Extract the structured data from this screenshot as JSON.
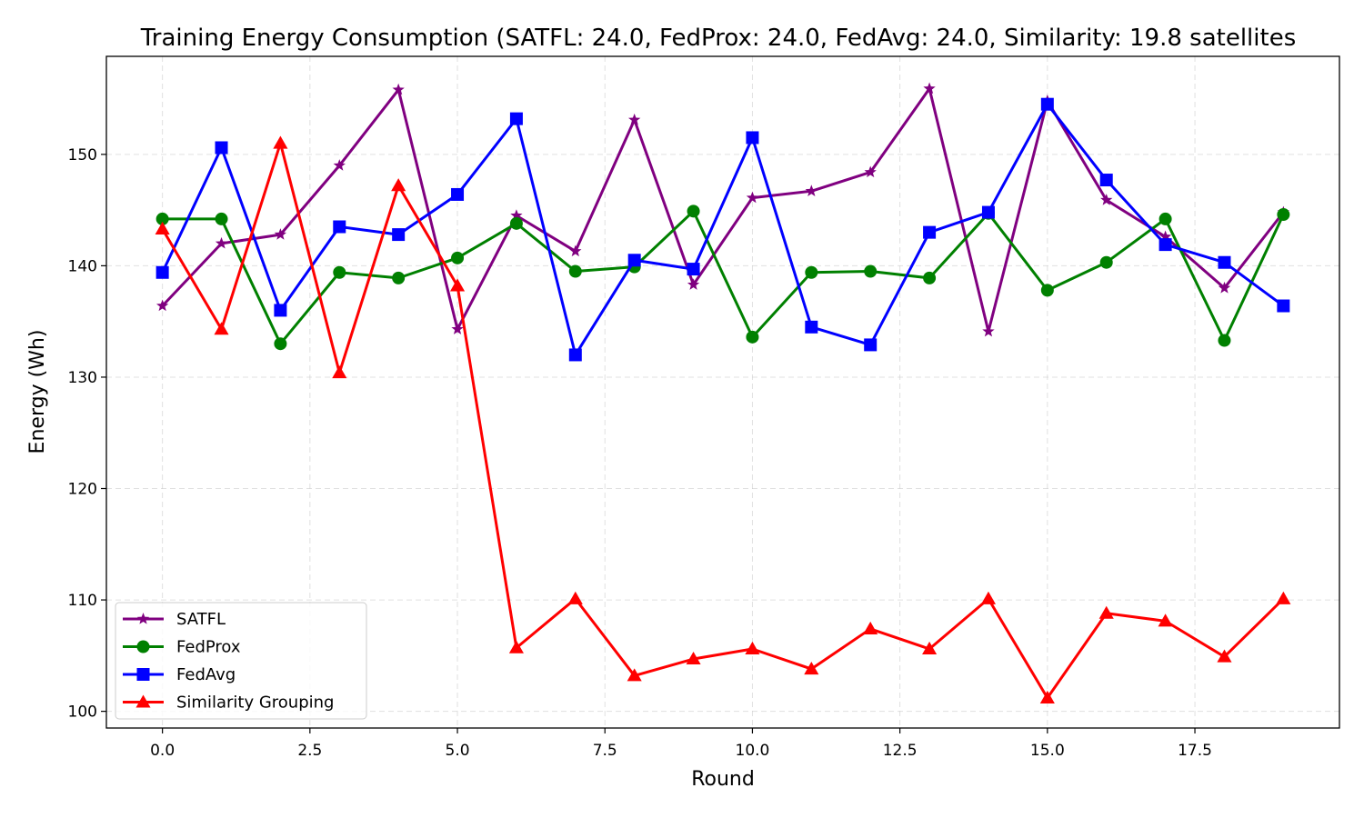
{
  "chart_data": {
    "type": "line",
    "title": "Training Energy Consumption (SATFL: 24.0, FedProx: 24.0, FedAvg: 24.0, Similarity: 19.8 satellites",
    "xlabel": "Round",
    "ylabel": "Energy (Wh)",
    "xlim": [
      -0.95,
      19.95
    ],
    "ylim": [
      98.5,
      158.8
    ],
    "xticks": [
      0.0,
      2.5,
      5.0,
      7.5,
      10.0,
      12.5,
      15.0,
      17.5
    ],
    "xtick_labels": [
      "0.0",
      "2.5",
      "5.0",
      "7.5",
      "10.0",
      "12.5",
      "15.0",
      "17.5"
    ],
    "yticks": [
      100,
      110,
      120,
      130,
      140,
      150
    ],
    "ytick_labels": [
      "100",
      "110",
      "120",
      "130",
      "140",
      "150"
    ],
    "grid": true,
    "legend_position": "lower-left",
    "x": [
      0,
      1,
      2,
      3,
      4,
      5,
      6,
      7,
      8,
      9,
      10,
      11,
      12,
      13,
      14,
      15,
      16,
      17,
      18,
      19
    ],
    "series": [
      {
        "name": "SATFL",
        "color": "#800080",
        "marker": "star",
        "values": [
          136.4,
          142.0,
          142.8,
          149.0,
          155.8,
          134.3,
          144.5,
          141.3,
          153.1,
          138.3,
          146.1,
          146.7,
          148.4,
          155.9,
          134.1,
          154.8,
          145.9,
          142.6,
          138.0,
          144.8
        ]
      },
      {
        "name": "FedProx",
        "color": "#008000",
        "marker": "circle",
        "values": [
          144.2,
          144.2,
          133.0,
          139.4,
          138.9,
          140.7,
          143.8,
          139.5,
          139.9,
          144.9,
          133.6,
          139.4,
          139.5,
          138.9,
          144.7,
          137.8,
          140.3,
          144.2,
          133.3,
          144.6
        ]
      },
      {
        "name": "FedAvg",
        "color": "#0000ff",
        "marker": "square",
        "values": [
          139.4,
          150.6,
          136.0,
          143.5,
          142.8,
          146.4,
          153.2,
          132.0,
          140.5,
          139.7,
          151.5,
          134.5,
          132.9,
          143.0,
          144.8,
          154.5,
          147.7,
          141.9,
          140.3,
          136.4
        ]
      },
      {
        "name": "Similarity Grouping",
        "color": "#ff0000",
        "marker": "triangle",
        "values": [
          143.3,
          134.3,
          151.0,
          130.4,
          147.2,
          138.2,
          105.7,
          110.1,
          103.2,
          104.7,
          105.6,
          103.8,
          107.4,
          105.6,
          110.1,
          101.2,
          108.8,
          108.1,
          104.9,
          110.1
        ]
      }
    ]
  }
}
